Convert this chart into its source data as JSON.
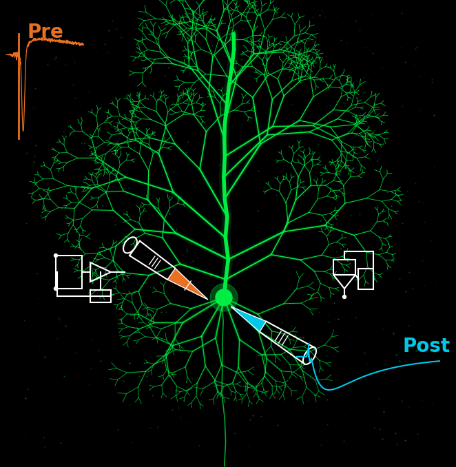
{
  "bg_color": "#000000",
  "neuron_color": "#00ee44",
  "pre_color": "#e87020",
  "post_color": "#00c8e8",
  "pre_label": "Pre",
  "post_label": "Post",
  "pre_label_fontsize": 20,
  "post_label_fontsize": 20,
  "fig_width": 6.62,
  "fig_height": 6.78,
  "dpi": 100
}
